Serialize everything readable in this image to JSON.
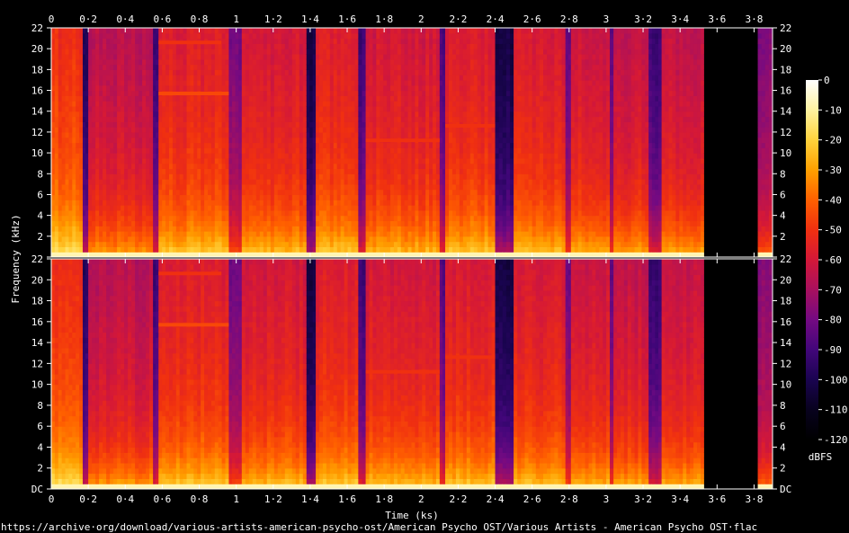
{
  "chart_data": {
    "type": "heatmap",
    "title": "",
    "xlabel": "Time (ks)",
    "ylabel": "Frequency (kHz)",
    "xlim": [
      0,
      3.9
    ],
    "ylim": [
      0,
      22
    ],
    "x_ticks": [
      "0",
      "0·2",
      "0·4",
      "0·6",
      "0·8",
      "1",
      "1·2",
      "1·4",
      "1·6",
      "1·8",
      "2",
      "2·2",
      "2·4",
      "2·6",
      "2·8",
      "3",
      "3·2",
      "3·4",
      "3·6",
      "3·8"
    ],
    "y_ticks": [
      "DC",
      "2",
      "4",
      "6",
      "8",
      "10",
      "12",
      "14",
      "16",
      "18",
      "20",
      "22"
    ],
    "channels": 2,
    "colorbar": {
      "label": "dBFS",
      "range": [
        -120,
        0
      ],
      "ticks": [
        "0",
        "-10",
        "-20",
        "-30",
        "-40",
        "-50",
        "-60",
        "-70",
        "-80",
        "-90",
        "-100",
        "-110",
        "-120"
      ],
      "colors": [
        "#ffffff",
        "#fff3a0",
        "#ffd23c",
        "#ffa000",
        "#ff6000",
        "#f03010",
        "#d41838",
        "#a8105e",
        "#740a82",
        "#42067a",
        "#1a0450",
        "#08021e",
        "#000000"
      ]
    },
    "tracks": [
      {
        "start": 0.0,
        "end": 0.17,
        "level": -48
      },
      {
        "start": 0.17,
        "end": 0.2,
        "level": -95
      },
      {
        "start": 0.2,
        "end": 0.55,
        "level": -64
      },
      {
        "start": 0.55,
        "end": 0.58,
        "level": -90
      },
      {
        "start": 0.58,
        "end": 0.96,
        "level": -55
      },
      {
        "start": 0.96,
        "end": 1.03,
        "level": -78
      },
      {
        "start": 1.03,
        "end": 1.38,
        "level": -58
      },
      {
        "start": 1.38,
        "end": 1.43,
        "level": -100
      },
      {
        "start": 1.43,
        "end": 1.66,
        "level": -55
      },
      {
        "start": 1.66,
        "end": 1.7,
        "level": -90
      },
      {
        "start": 1.7,
        "end": 2.1,
        "level": -58
      },
      {
        "start": 2.1,
        "end": 2.13,
        "level": -85
      },
      {
        "start": 2.13,
        "end": 2.4,
        "level": -56
      },
      {
        "start": 2.4,
        "end": 2.5,
        "level": -100
      },
      {
        "start": 2.5,
        "end": 2.78,
        "level": -57
      },
      {
        "start": 2.78,
        "end": 2.81,
        "level": -80
      },
      {
        "start": 2.81,
        "end": 3.02,
        "level": -60
      },
      {
        "start": 3.02,
        "end": 3.04,
        "level": -85
      },
      {
        "start": 3.04,
        "end": 3.23,
        "level": -62
      },
      {
        "start": 3.23,
        "end": 3.3,
        "level": -90
      },
      {
        "start": 3.3,
        "end": 3.53,
        "level": -62
      },
      {
        "start": 3.53,
        "end": 3.82,
        "level": -120
      },
      {
        "start": 3.82,
        "end": 3.9,
        "level": -75
      }
    ],
    "tones": [
      {
        "start": 0.58,
        "end": 0.92,
        "freq": 20.6,
        "level": -50
      },
      {
        "start": 0.58,
        "end": 0.96,
        "freq": 15.7,
        "level": -45
      },
      {
        "start": 1.7,
        "end": 2.1,
        "freq": 11.2,
        "level": -50
      },
      {
        "start": 2.13,
        "end": 2.4,
        "freq": 12.6,
        "level": -50
      }
    ]
  },
  "source_url": "https://archive·org/download/various-artists-american-psycho-ost/American Psycho OST/Various Artists - American Psycho OST·flac"
}
